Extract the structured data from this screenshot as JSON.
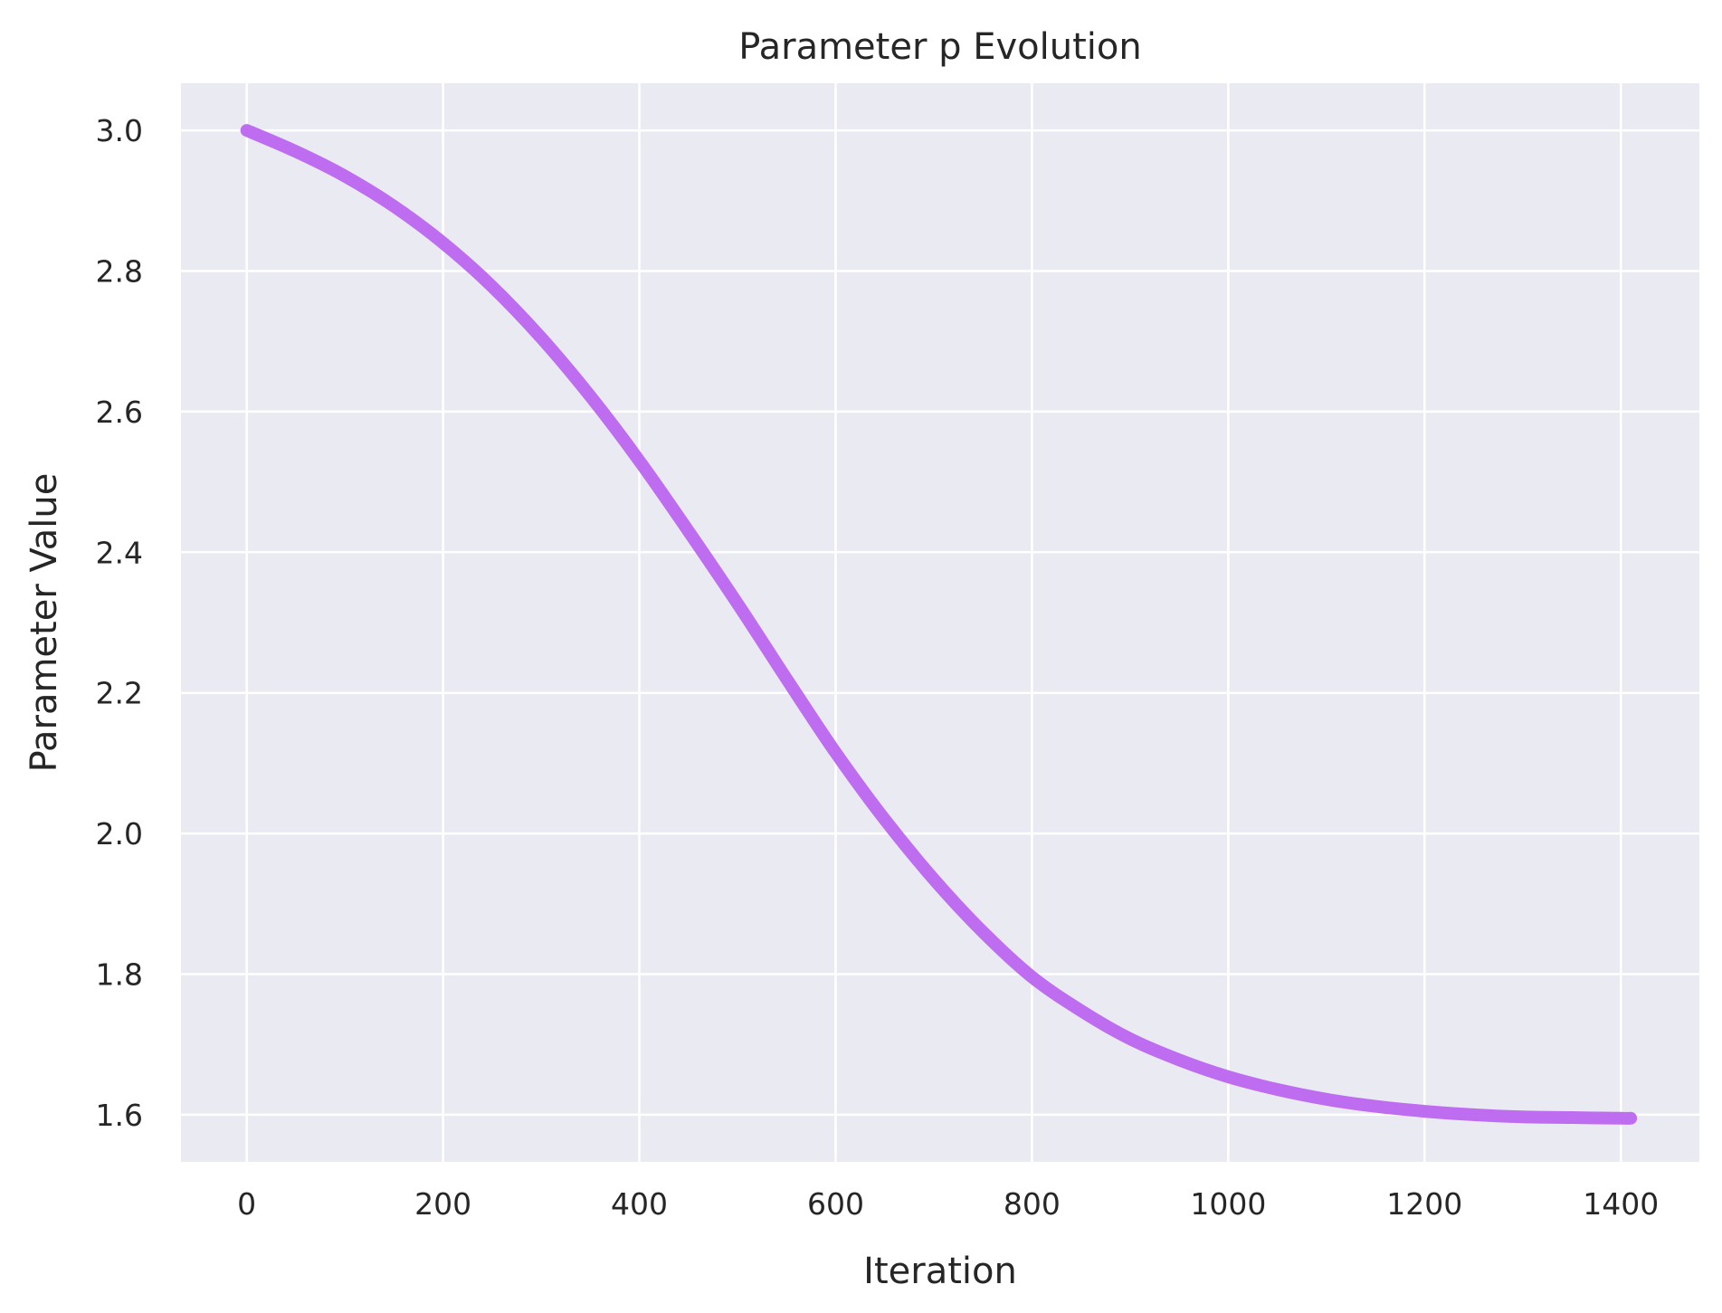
{
  "chart_data": {
    "type": "line",
    "title": "Parameter p Evolution",
    "xlabel": "Iteration",
    "ylabel": "Parameter Value",
    "xlim": [
      -67,
      1480
    ],
    "ylim": [
      1.533,
      3.067
    ],
    "xticks": [
      0,
      200,
      400,
      600,
      800,
      1000,
      1200,
      1400
    ],
    "yticks": [
      1.6,
      1.8,
      2.0,
      2.2,
      2.4,
      2.6,
      2.8,
      3.0
    ],
    "xtick_labels": [
      "0",
      "200",
      "400",
      "600",
      "800",
      "1000",
      "1200",
      "1400"
    ],
    "ytick_labels": [
      "1.6",
      "1.8",
      "2.0",
      "2.2",
      "2.4",
      "2.6",
      "2.8",
      "3.0"
    ],
    "grid": true,
    "background_color": "#EAEAF2",
    "grid_color": "#FFFFFF",
    "series": [
      {
        "color": "#BF6DF0",
        "x": [
          0,
          50,
          100,
          150,
          200,
          250,
          300,
          350,
          400,
          450,
          500,
          550,
          600,
          650,
          700,
          750,
          800,
          850,
          900,
          950,
          1000,
          1050,
          1100,
          1150,
          1200,
          1250,
          1300,
          1350,
          1400,
          1410
        ],
        "y": [
          3.0,
          2.97,
          2.935,
          2.892,
          2.84,
          2.778,
          2.705,
          2.622,
          2.53,
          2.43,
          2.327,
          2.22,
          2.115,
          2.02,
          1.935,
          1.86,
          1.796,
          1.748,
          1.708,
          1.678,
          1.654,
          1.636,
          1.622,
          1.612,
          1.605,
          1.6,
          1.597,
          1.596,
          1.595,
          1.595
        ]
      }
    ]
  }
}
